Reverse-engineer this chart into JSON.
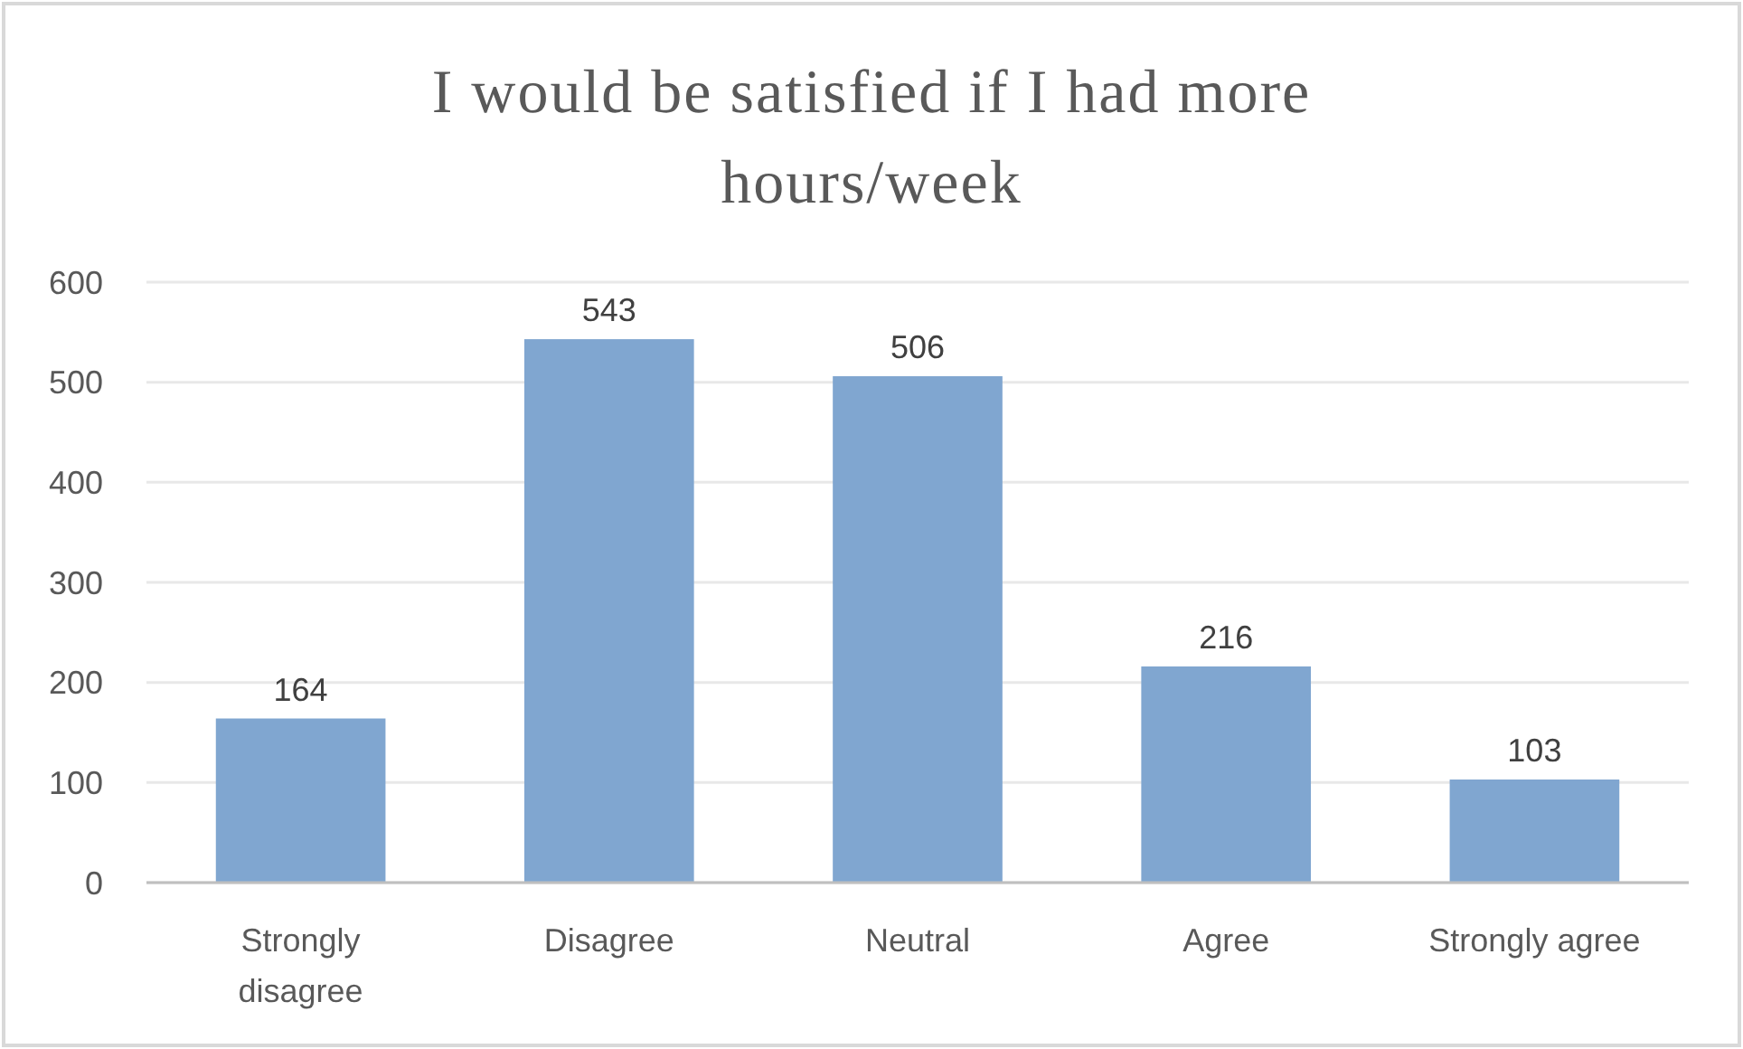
{
  "chart_data": {
    "type": "bar",
    "title": "I would be satisfied if I had more hours/week",
    "categories": [
      "Strongly disagree",
      "Disagree",
      "Neutral",
      "Agree",
      "Strongly agree"
    ],
    "values": [
      164,
      543,
      506,
      216,
      103
    ],
    "color": "#80a6d0",
    "ylim": [
      0,
      600
    ],
    "yticks": [
      0,
      100,
      200,
      300,
      400,
      500,
      600
    ],
    "grid": "y",
    "data_labels": true
  }
}
